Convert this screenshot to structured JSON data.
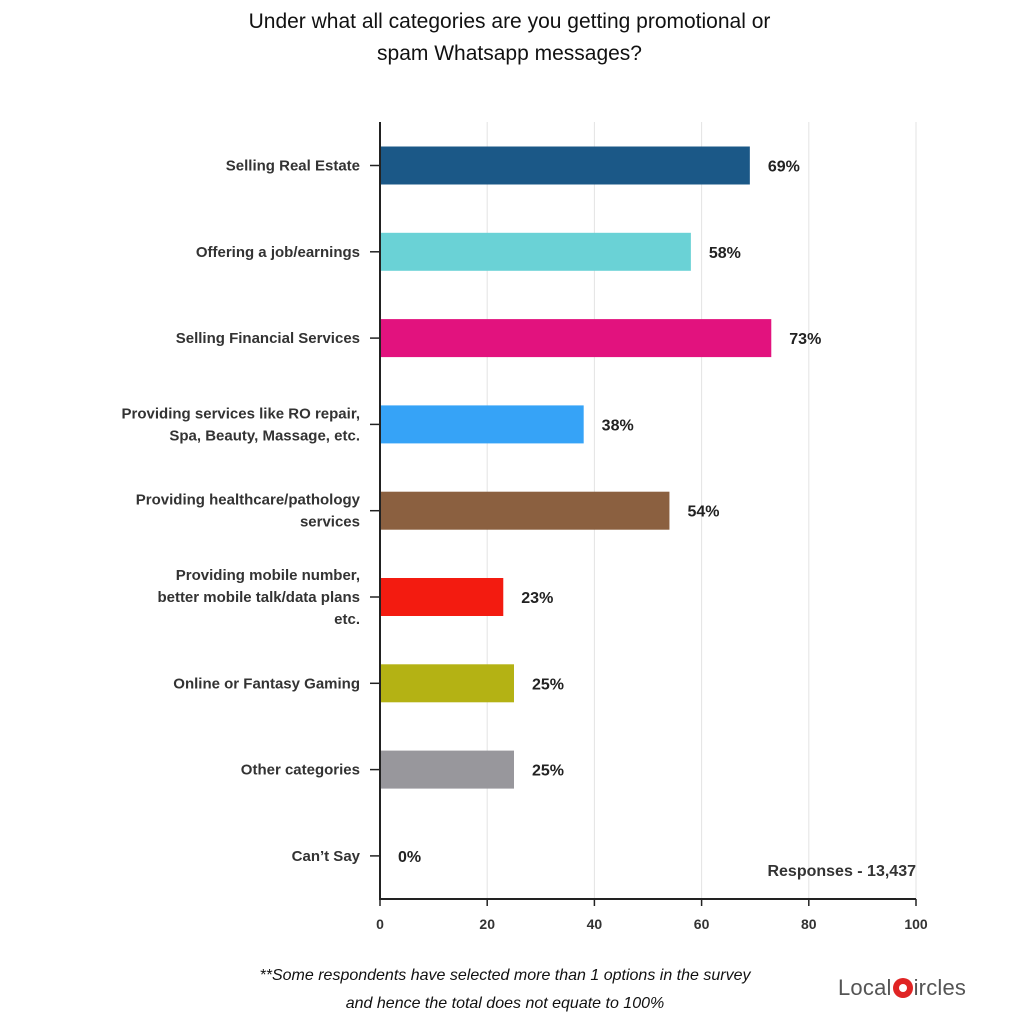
{
  "title_lines": [
    "Under what all categories are you getting promotional or",
    "spam Whatsapp messages?"
  ],
  "chart_data": {
    "type": "bar",
    "orientation": "horizontal",
    "title": "Under what all categories are you getting promotional or spam Whatsapp messages?",
    "categories": [
      [
        "Selling Real Estate"
      ],
      [
        "Offering a job/earnings"
      ],
      [
        "Selling Financial Services"
      ],
      [
        "Providing services like RO repair,",
        "Spa, Beauty, Massage, etc."
      ],
      [
        "Providing healthcare/pathology",
        "services"
      ],
      [
        "Providing mobile number,",
        "better mobile talk/data plans",
        "etc."
      ],
      [
        "Online or Fantasy Gaming"
      ],
      [
        "Other categories"
      ],
      [
        "Can’t Say"
      ]
    ],
    "values": [
      69,
      58,
      73,
      38,
      54,
      23,
      25,
      25,
      0
    ],
    "value_labels": [
      "69%",
      "58%",
      "73%",
      "38%",
      "54%",
      "23%",
      "25%",
      "25%",
      "0%"
    ],
    "colors": [
      "#1b5887",
      "#6ad2d6",
      "#e2127e",
      "#36a3f7",
      "#8b6040",
      "#f31b10",
      "#b4b214",
      "#98979c",
      "#cccccc"
    ],
    "xlim": [
      0,
      100
    ],
    "xticks": [
      0,
      20,
      40,
      60,
      80,
      100
    ],
    "xtick_labels": [
      "0",
      "20",
      "40",
      "60",
      "80",
      "100"
    ],
    "grid": true,
    "annotation": "Responses - 13,437"
  },
  "footnote_lines": [
    "**Some respondents have selected more than 1 options in the survey",
    "and hence the total does not equate to 100%"
  ],
  "logo": {
    "part1": "Local",
    "part2": "ircles"
  }
}
